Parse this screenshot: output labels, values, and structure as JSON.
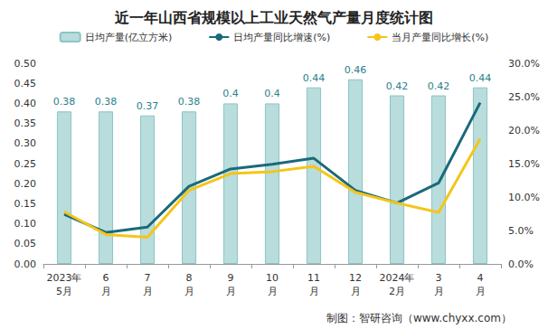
{
  "chart_data": {
    "type": "bar",
    "title": "近一年山西省规模以上工业天然气产量月度统计图",
    "categories": [
      "2023年\n5月",
      "6\n月",
      "7\n月",
      "8\n月",
      "9\n月",
      "10\n月",
      "11\n月",
      "12\n月",
      "2024年\n2月",
      "3\n月",
      "4\n月"
    ],
    "series": [
      {
        "name": "日均产量(亿立方米)",
        "type": "bar",
        "color": "#b9dcdc",
        "data_labels": true,
        "values": [
          0.38,
          0.38,
          0.37,
          0.38,
          0.4,
          0.4,
          0.44,
          0.46,
          0.42,
          0.42,
          0.44
        ]
      },
      {
        "name": "日均产量同比增速(%)",
        "type": "line",
        "axis": "y2",
        "color": "#1a6a7a",
        "values": [
          7.4,
          4.7,
          5.5,
          11.6,
          14.2,
          14.9,
          15.8,
          11.0,
          9.1,
          12.1,
          24.1
        ]
      },
      {
        "name": "当月产量同比增长(%)",
        "type": "line",
        "axis": "y2",
        "color": "#f5c518",
        "values": [
          7.8,
          4.4,
          4.0,
          11.0,
          13.5,
          13.8,
          14.6,
          10.7,
          9.1,
          7.7,
          18.7
        ]
      }
    ],
    "ylim": [
      0,
      0.5
    ],
    "yticks": [
      {
        "value": 0,
        "label": "0.00"
      },
      {
        "value": 0.05,
        "label": "0.05"
      },
      {
        "value": 0.1,
        "label": "0.10"
      },
      {
        "value": 0.15,
        "label": "0.15"
      },
      {
        "value": 0.2,
        "label": "0.20"
      },
      {
        "value": 0.25,
        "label": "0.25"
      },
      {
        "value": 0.3,
        "label": "0.30"
      },
      {
        "value": 0.35,
        "label": "0.35"
      },
      {
        "value": 0.4,
        "label": "0.40"
      },
      {
        "value": 0.45,
        "label": "0.45"
      },
      {
        "value": 0.5,
        "label": "0.50"
      }
    ],
    "y2lim": [
      0,
      30
    ],
    "y2ticks": [
      {
        "value": 0,
        "label": "0.0%"
      },
      {
        "value": 5,
        "label": "5.0%"
      },
      {
        "value": 10,
        "label": "10.0%"
      },
      {
        "value": 15,
        "label": "15.0%"
      },
      {
        "value": 20,
        "label": "20.0%"
      },
      {
        "value": 25,
        "label": "25.0%"
      },
      {
        "value": 30,
        "label": "30.0%"
      }
    ],
    "legend": "top",
    "grid": false,
    "annotations": [
      "制图：智研咨询（www.chyxx.com）"
    ]
  }
}
